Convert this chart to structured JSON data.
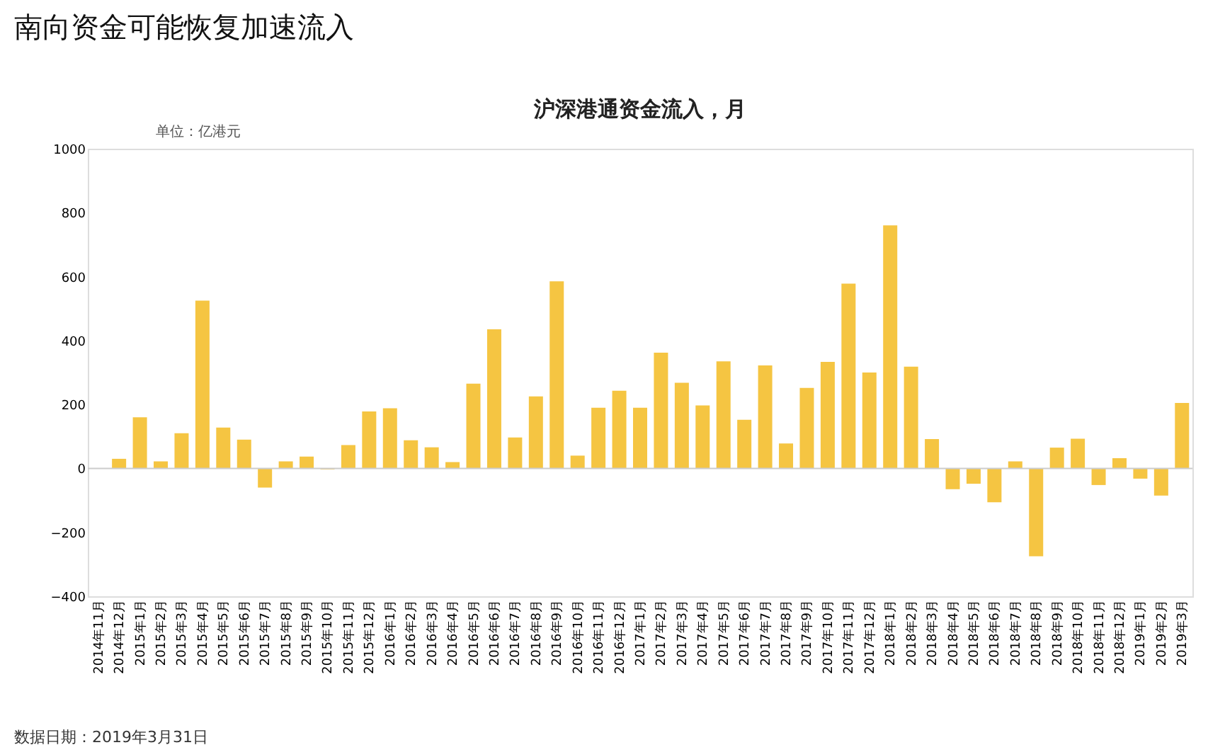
{
  "chart_data": {
    "type": "bar",
    "title": "南向资金可能恢复加速流入",
    "subtitle": "沪深港通资金流入，月",
    "categories": [
      "2014年11月",
      "2014年12月",
      "2015年1月",
      "2015年2月",
      "2015年3月",
      "2015年4月",
      "2015年5月",
      "2015年6月",
      "2015年7月",
      "2015年8月",
      "2015年9月",
      "2015年10月",
      "2015年11月",
      "2015年12月",
      "2016年1月",
      "2016年2月",
      "2016年3月",
      "2016年4月",
      "2016年5月",
      "2016年6月",
      "2016年7月",
      "2016年8月",
      "2016年9月",
      "2016年10月",
      "2016年11月",
      "2016年12月",
      "2017年1月",
      "2017年2月",
      "2017年3月",
      "2017年4月",
      "2017年5月",
      "2017年6月",
      "2017年7月",
      "2017年8月",
      "2017年9月",
      "2017年10月",
      "2017年11月",
      "2017年12月",
      "2018年1月",
      "2018年2月",
      "2018年3月",
      "2018年4月",
      "2018年5月",
      "2018年6月",
      "2018年7月",
      "2018年8月",
      "2018年9月",
      "2018年10月",
      "2018年11月",
      "2018年12月",
      "2019年1月",
      "2019年2月",
      "2019年3月"
    ],
    "values": [
      0,
      30,
      160,
      22,
      110,
      525,
      128,
      90,
      -60,
      22,
      37,
      -3,
      73,
      178,
      188,
      88,
      66,
      20,
      265,
      435,
      97,
      225,
      585,
      40,
      190,
      243,
      190,
      362,
      268,
      197,
      335,
      152,
      322,
      78,
      252,
      333,
      578,
      300,
      760,
      318,
      92,
      -65,
      -48,
      -106,
      22,
      -275,
      65,
      93,
      -52,
      32,
      -32,
      -85,
      205
    ],
    "color": "#f5c542",
    "ylim": [
      -400,
      1000
    ],
    "yticks": [
      -400,
      -200,
      0,
      200,
      400,
      600,
      800,
      1000
    ],
    "grid": false,
    "ref_lines": [
      {
        "axis": "y",
        "value": 0,
        "color": "#cccccc"
      }
    ],
    "annotations": [
      "单位：亿港元",
      "数据日期：2019年3月31日"
    ]
  }
}
